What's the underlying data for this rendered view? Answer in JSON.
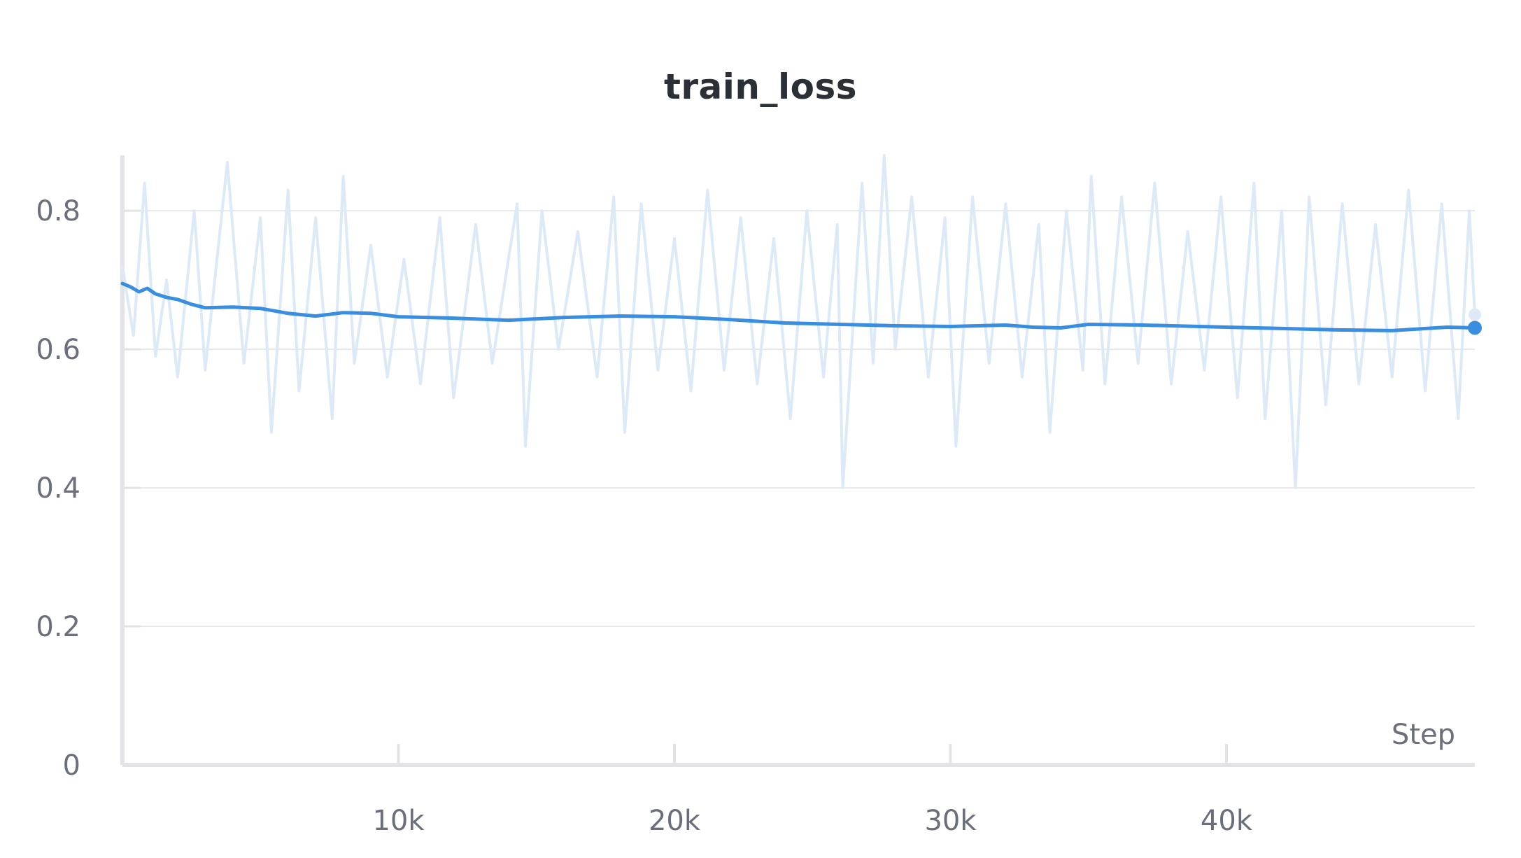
{
  "chart_data": {
    "type": "line",
    "title": "train_loss",
    "xlabel": "Step",
    "ylabel": "",
    "xlim": [
      0,
      49000
    ],
    "ylim": [
      0,
      0.88
    ],
    "x_ticks": [
      10000,
      20000,
      30000,
      40000
    ],
    "x_tick_labels": [
      "10k",
      "20k",
      "30k",
      "40k"
    ],
    "y_ticks": [
      0,
      0.2,
      0.4,
      0.6,
      0.8
    ],
    "y_tick_labels": [
      "0",
      "0.2",
      "0.4",
      "0.6",
      "0.8"
    ],
    "grid": "horizontal",
    "legend": "none",
    "series": [
      {
        "style": "smoothed",
        "color": "#3a8ee0",
        "points": [
          [
            0,
            0.695
          ],
          [
            300,
            0.69
          ],
          [
            600,
            0.683
          ],
          [
            900,
            0.688
          ],
          [
            1200,
            0.68
          ],
          [
            1600,
            0.675
          ],
          [
            2000,
            0.672
          ],
          [
            2500,
            0.665
          ],
          [
            3000,
            0.66
          ],
          [
            4000,
            0.661
          ],
          [
            5000,
            0.659
          ],
          [
            6000,
            0.652
          ],
          [
            7000,
            0.648
          ],
          [
            8000,
            0.653
          ],
          [
            9000,
            0.652
          ],
          [
            10000,
            0.647
          ],
          [
            12000,
            0.645
          ],
          [
            14000,
            0.642
          ],
          [
            16000,
            0.646
          ],
          [
            18000,
            0.648
          ],
          [
            20000,
            0.647
          ],
          [
            22000,
            0.643
          ],
          [
            24000,
            0.638
          ],
          [
            26000,
            0.636
          ],
          [
            28000,
            0.634
          ],
          [
            30000,
            0.633
          ],
          [
            32000,
            0.635
          ],
          [
            33000,
            0.632
          ],
          [
            34000,
            0.631
          ],
          [
            35000,
            0.636
          ],
          [
            37000,
            0.635
          ],
          [
            39000,
            0.633
          ],
          [
            40000,
            0.632
          ],
          [
            42000,
            0.63
          ],
          [
            44000,
            0.628
          ],
          [
            46000,
            0.627
          ],
          [
            48000,
            0.632
          ],
          [
            49000,
            0.631
          ]
        ]
      },
      {
        "style": "raw",
        "color": "#dce9f7",
        "points": [
          [
            0,
            0.72
          ],
          [
            400,
            0.62
          ],
          [
            800,
            0.84
          ],
          [
            1200,
            0.59
          ],
          [
            1600,
            0.7
          ],
          [
            2000,
            0.56
          ],
          [
            2600,
            0.8
          ],
          [
            3000,
            0.57
          ],
          [
            3800,
            0.87
          ],
          [
            4400,
            0.58
          ],
          [
            5000,
            0.79
          ],
          [
            5400,
            0.48
          ],
          [
            6000,
            0.83
          ],
          [
            6400,
            0.54
          ],
          [
            7000,
            0.79
          ],
          [
            7600,
            0.5
          ],
          [
            8000,
            0.85
          ],
          [
            8400,
            0.58
          ],
          [
            9000,
            0.75
          ],
          [
            9600,
            0.56
          ],
          [
            10200,
            0.73
          ],
          [
            10800,
            0.55
          ],
          [
            11500,
            0.79
          ],
          [
            12000,
            0.53
          ],
          [
            12800,
            0.78
          ],
          [
            13400,
            0.58
          ],
          [
            14300,
            0.81
          ],
          [
            14600,
            0.46
          ],
          [
            15200,
            0.8
          ],
          [
            15800,
            0.6
          ],
          [
            16500,
            0.77
          ],
          [
            17200,
            0.56
          ],
          [
            17800,
            0.82
          ],
          [
            18200,
            0.48
          ],
          [
            18800,
            0.81
          ],
          [
            19400,
            0.57
          ],
          [
            20000,
            0.76
          ],
          [
            20600,
            0.54
          ],
          [
            21200,
            0.83
          ],
          [
            21800,
            0.57
          ],
          [
            22400,
            0.79
          ],
          [
            23000,
            0.55
          ],
          [
            23600,
            0.76
          ],
          [
            24200,
            0.5
          ],
          [
            24800,
            0.8
          ],
          [
            25400,
            0.56
          ],
          [
            25900,
            0.78
          ],
          [
            26100,
            0.4
          ],
          [
            26800,
            0.84
          ],
          [
            27200,
            0.58
          ],
          [
            27600,
            0.88
          ],
          [
            28000,
            0.6
          ],
          [
            28600,
            0.82
          ],
          [
            29200,
            0.56
          ],
          [
            29800,
            0.79
          ],
          [
            30200,
            0.46
          ],
          [
            30800,
            0.82
          ],
          [
            31400,
            0.58
          ],
          [
            32000,
            0.81
          ],
          [
            32600,
            0.56
          ],
          [
            33200,
            0.78
          ],
          [
            33600,
            0.48
          ],
          [
            34200,
            0.8
          ],
          [
            34800,
            0.57
          ],
          [
            35100,
            0.85
          ],
          [
            35600,
            0.55
          ],
          [
            36200,
            0.82
          ],
          [
            36800,
            0.58
          ],
          [
            37400,
            0.84
          ],
          [
            38000,
            0.55
          ],
          [
            38600,
            0.77
          ],
          [
            39200,
            0.57
          ],
          [
            39800,
            0.82
          ],
          [
            40400,
            0.53
          ],
          [
            41000,
            0.84
          ],
          [
            41400,
            0.5
          ],
          [
            42000,
            0.8
          ],
          [
            42500,
            0.4
          ],
          [
            43000,
            0.82
          ],
          [
            43600,
            0.52
          ],
          [
            44200,
            0.81
          ],
          [
            44800,
            0.55
          ],
          [
            45400,
            0.78
          ],
          [
            46000,
            0.56
          ],
          [
            46600,
            0.83
          ],
          [
            47200,
            0.54
          ],
          [
            47800,
            0.81
          ],
          [
            48400,
            0.5
          ],
          [
            48800,
            0.8
          ],
          [
            49000,
            0.65
          ]
        ]
      }
    ],
    "last_point": {
      "x": 49000,
      "y": 0.631
    }
  }
}
